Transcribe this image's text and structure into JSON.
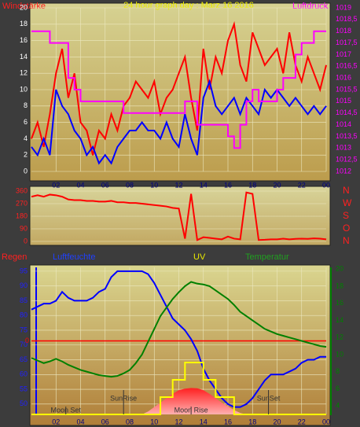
{
  "chart_data": [
    {
      "type": "line",
      "title": "24 hour graph day : Marz 16 2016",
      "ylabel": "Windstärke",
      "y2label": "Luftdruck",
      "x": [
        0,
        0.5,
        1,
        1.5,
        2,
        2.5,
        3,
        3.5,
        4,
        4.5,
        5,
        5.5,
        6,
        6.5,
        7,
        7.5,
        8,
        8.5,
        9,
        9.5,
        10,
        10.5,
        11,
        11.5,
        12,
        12.5,
        13,
        13.5,
        14,
        14.5,
        15,
        15.5,
        16,
        16.5,
        17,
        17.5,
        18,
        18.5,
        19,
        19.5,
        20,
        20.5,
        21,
        21.5,
        22,
        22.5,
        23,
        23.5,
        24
      ],
      "xlim": [
        0,
        24
      ],
      "xticks": [
        {
          "value": 2,
          "label": "02"
        },
        {
          "value": 4,
          "label": "04"
        },
        {
          "value": 6,
          "label": "06"
        },
        {
          "value": 8,
          "label": "08"
        },
        10,
        12,
        14,
        16,
        18,
        20,
        22,
        {
          "value": 24,
          "label": "00"
        }
      ],
      "ylim": [
        0,
        20
      ],
      "yticks": [
        0,
        2,
        4,
        6,
        8,
        10,
        12,
        14,
        16,
        18,
        20
      ],
      "y2lim": [
        1012,
        1019
      ],
      "y2ticks": [
        1012,
        {
          "value": 1012.5,
          "label": "1012,5"
        },
        1013,
        {
          "value": 1013.5,
          "label": "1013,5"
        },
        1014,
        {
          "value": 1014.5,
          "label": "1014,5"
        },
        1015,
        {
          "value": 1015.5,
          "label": "1015,5"
        },
        1016,
        {
          "value": 1016.5,
          "label": "1016,5"
        },
        1017,
        {
          "value": 1017.5,
          "label": "1017,5"
        },
        1018,
        {
          "value": 1018.5,
          "label": "1018,5"
        },
        1019
      ],
      "grid": true,
      "series": [
        {
          "color": "#ff0000",
          "axis": "y",
          "values": [
            4,
            6,
            3,
            7,
            12,
            15,
            9,
            12,
            6,
            5,
            2,
            5,
            4,
            7,
            5,
            8,
            9,
            11,
            10,
            9,
            11,
            7,
            9,
            10,
            12,
            14,
            9,
            5,
            15,
            10,
            14,
            12,
            16,
            18,
            13,
            11,
            17,
            15,
            13,
            14,
            15,
            12,
            17,
            13,
            11,
            14,
            12,
            10,
            13
          ]
        },
        {
          "color": "#0000ff",
          "axis": "y",
          "values": [
            3,
            2,
            4,
            2,
            10,
            8,
            7,
            5,
            4,
            2,
            3,
            1,
            2,
            1,
            3,
            4,
            5,
            5,
            6,
            5,
            5,
            4,
            6,
            4,
            3,
            7,
            4,
            2,
            9,
            11,
            8,
            7,
            8,
            9,
            7,
            9,
            8,
            7,
            10,
            9,
            10,
            9,
            8,
            9,
            8,
            7,
            8,
            7,
            8
          ]
        },
        {
          "color": "#ff00ff",
          "axis": "y2",
          "step": true,
          "values": [
            1018,
            1018,
            1018,
            1017.5,
            1017.5,
            1017.5,
            1016,
            1015.5,
            1015,
            1015,
            1015,
            1015,
            1015,
            1015,
            1015,
            1014.5,
            1014.5,
            1014.5,
            1014.5,
            1014.5,
            1014.5,
            1014.5,
            1014.5,
            1014.5,
            1014.5,
            1015,
            1015,
            1014,
            1014,
            1014,
            1014,
            1014,
            1013.5,
            1013,
            1014,
            1015,
            1015.5,
            1015,
            1015,
            1015,
            1015.5,
            1016,
            1016,
            1017,
            1017.5,
            1017.5,
            1018,
            1018,
            1018
          ]
        }
      ]
    },
    {
      "type": "line",
      "x": [
        0,
        0.5,
        1,
        1.5,
        2,
        2.5,
        3,
        3.5,
        4,
        4.5,
        5,
        5.5,
        6,
        6.5,
        7,
        7.5,
        8,
        8.5,
        9,
        9.5,
        10,
        10.5,
        11,
        11.5,
        12,
        12.5,
        13,
        13.5,
        14,
        14.5,
        15,
        15.5,
        16,
        16.5,
        17,
        17.5,
        18,
        18.5,
        19,
        19.5,
        20,
        20.5,
        21,
        21.5,
        22,
        22.5,
        23,
        23.5,
        24
      ],
      "xlim": [
        0,
        24
      ],
      "ylim": [
        0,
        360
      ],
      "yticks": [
        0,
        90,
        180,
        270,
        360
      ],
      "y2ticks": [
        {
          "value": 360,
          "label": "N"
        },
        {
          "value": 270,
          "label": "W"
        },
        {
          "value": 180,
          "label": "S"
        },
        {
          "value": 90,
          "label": "O"
        },
        {
          "value": 0,
          "label": "N"
        }
      ],
      "grid": true,
      "series": [
        {
          "color": "#ff0000",
          "axis": "y",
          "values": [
            320,
            330,
            320,
            335,
            330,
            320,
            300,
            295,
            295,
            290,
            290,
            285,
            285,
            290,
            280,
            280,
            275,
            275,
            270,
            265,
            260,
            255,
            250,
            240,
            235,
            20,
            340,
            10,
            30,
            25,
            20,
            15,
            35,
            20,
            15,
            350,
            340,
            10,
            12,
            15,
            15,
            20,
            15,
            18,
            20,
            18,
            22,
            20,
            15
          ]
        }
      ]
    },
    {
      "type": "line",
      "x": [
        0,
        0.5,
        1,
        1.5,
        2,
        2.5,
        3,
        3.5,
        4,
        4.5,
        5,
        5.5,
        6,
        6.5,
        7,
        7.5,
        8,
        8.5,
        9,
        9.5,
        10,
        10.5,
        11,
        11.5,
        12,
        12.5,
        13,
        13.5,
        14,
        14.5,
        15,
        15.5,
        16,
        16.5,
        17,
        17.5,
        18,
        18.5,
        19,
        19.5,
        20,
        20.5,
        21,
        21.5,
        22,
        22.5,
        23,
        23.5,
        24
      ],
      "xlim": [
        0,
        24
      ],
      "xticks": [
        {
          "value": 2,
          "label": "02"
        },
        {
          "value": 4,
          "label": "04"
        },
        {
          "value": 6,
          "label": "06"
        },
        {
          "value": 8,
          "label": "08"
        },
        10,
        12,
        14,
        16,
        18,
        20,
        22,
        {
          "value": 24,
          "label": "00"
        }
      ],
      "ylim": [
        46.5,
        96.3
      ],
      "yticks": [
        50,
        55,
        60,
        65,
        70,
        75,
        80,
        85,
        90,
        95
      ],
      "y2lim": [
        3,
        20.2
      ],
      "y2ticks": [
        4,
        6,
        8,
        10,
        12,
        14,
        16,
        18,
        20
      ],
      "grid": true,
      "series": [
        {
          "name": "Regen",
          "color": "#ff0000",
          "axis": "y3",
          "ylim": [
            -1,
            1
          ],
          "yticks": [
            0
          ],
          "values": [
            0,
            0,
            0,
            0,
            0,
            0,
            0,
            0,
            0,
            0,
            0,
            0,
            0,
            0,
            0,
            0,
            0,
            0,
            0,
            0,
            0,
            0,
            0,
            0,
            0,
            0,
            0,
            0,
            0,
            0,
            0,
            0,
            0,
            0,
            0,
            0,
            0,
            0,
            0,
            0,
            0,
            0,
            0,
            0,
            0,
            0,
            0,
            0,
            0
          ]
        },
        {
          "name": "Luftfeuchte",
          "color": "#0000ff",
          "axis": "y",
          "values": [
            82,
            83,
            84,
            84,
            85,
            88,
            86,
            85,
            85,
            85,
            86,
            88,
            89,
            93,
            95,
            95,
            95,
            95,
            95,
            94,
            91,
            87,
            83,
            79,
            77,
            75,
            72,
            68,
            62,
            58,
            55,
            52,
            50,
            49,
            49,
            50,
            52,
            55,
            58,
            60,
            60,
            60,
            61,
            62,
            64,
            65,
            65,
            66,
            66
          ]
        },
        {
          "name": "UV",
          "color": "#ffff00",
          "axis": "y4",
          "step": true,
          "ylim": [
            0,
            8.5
          ],
          "values": [
            0,
            0,
            0,
            0,
            0,
            0,
            0,
            0,
            0,
            0,
            0,
            0,
            0,
            0,
            0,
            0,
            0,
            0,
            0,
            0,
            0,
            1,
            1,
            2,
            2,
            3,
            3,
            3,
            2,
            2,
            1,
            1,
            1,
            0,
            0,
            0,
            0,
            0,
            0,
            0,
            0,
            0,
            0,
            0,
            0,
            0,
            0,
            0,
            0
          ]
        },
        {
          "name": "Temperatur",
          "color": "#008000",
          "axis": "y2",
          "values": [
            9.6,
            9.3,
            9,
            9.2,
            9.5,
            9.2,
            8.8,
            8.5,
            8.2,
            8,
            7.8,
            7.6,
            7.5,
            7.4,
            7.5,
            7.8,
            8.2,
            9,
            10,
            11.5,
            13,
            14.5,
            15.5,
            16.5,
            17.3,
            18,
            18.5,
            18.3,
            18.2,
            18,
            17.5,
            17,
            16.5,
            15.8,
            15,
            14.5,
            14,
            13.5,
            13,
            12.7,
            12.4,
            12.2,
            12,
            11.8,
            11.6,
            11.4,
            11.2,
            11,
            10.9
          ]
        }
      ],
      "solar": {
        "ylim": [
          0,
          1000
        ],
        "values": [
          0,
          0,
          0,
          0,
          0,
          0,
          0,
          0,
          0,
          0,
          0,
          0,
          0,
          0,
          0,
          0,
          0,
          0,
          0,
          20,
          50,
          80,
          110,
          140,
          165,
          175,
          180,
          178,
          165,
          140,
          110,
          80,
          55,
          30,
          10,
          0,
          0,
          0,
          0,
          0,
          0,
          0,
          0,
          0,
          0,
          0,
          0,
          0,
          0
        ]
      },
      "events": [
        {
          "label": "Moon Set",
          "x": 2.8
        },
        {
          "label": "SunRise",
          "x": 7.5
        },
        {
          "label": "Moon Rise",
          "x": 13
        },
        {
          "label": "SunSet",
          "x": 19.3
        }
      ]
    }
  ]
}
